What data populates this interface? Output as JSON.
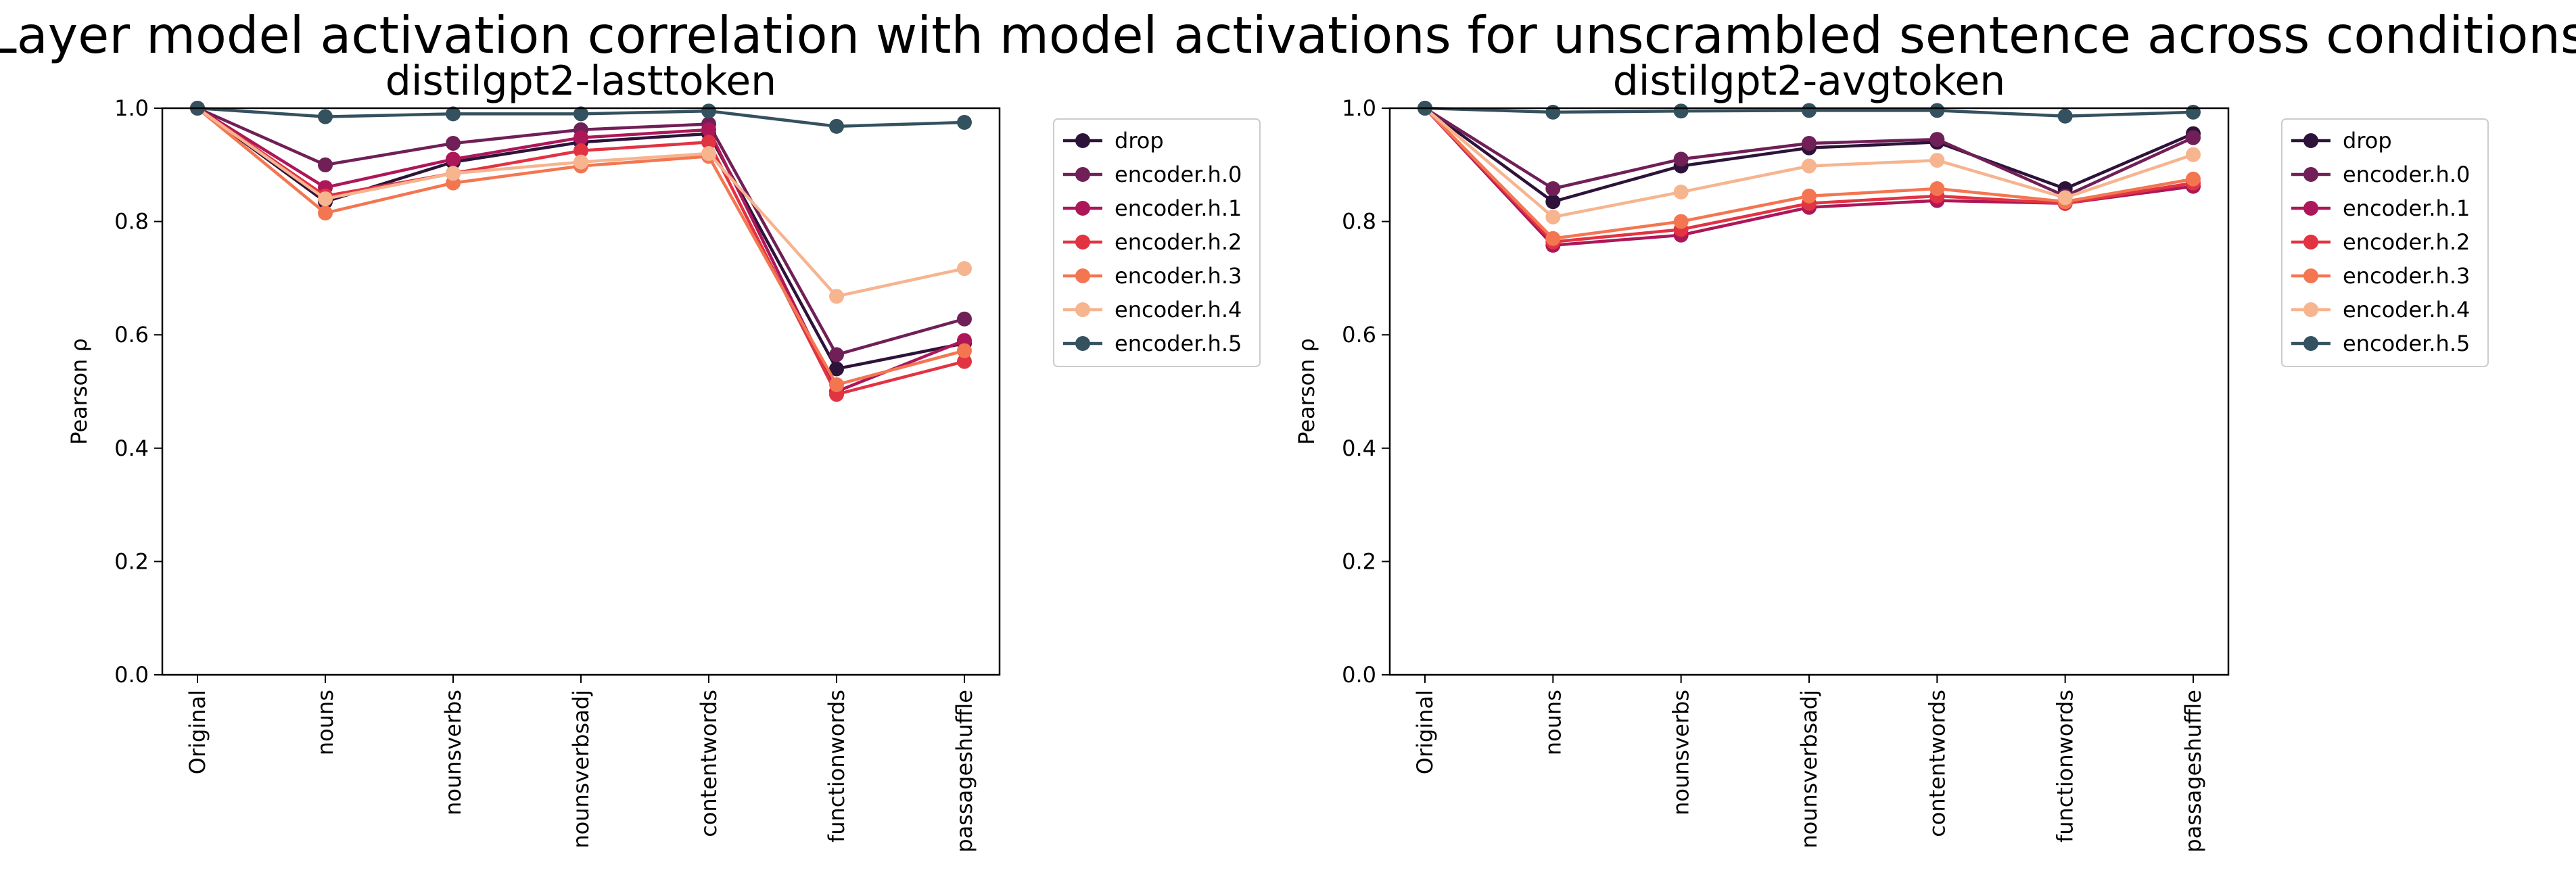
{
  "figure": {
    "title": "Layer model activation correlation with model activations for unscrambled sentence across conditions"
  },
  "chart_data": [
    {
      "type": "line",
      "title": "distilgpt2-lasttoken",
      "xlabel": "",
      "ylabel": "Pearson ρ",
      "ylim": [
        0,
        1.0
      ],
      "yticks": [
        "0.0",
        "0.2",
        "0.4",
        "0.6",
        "0.8",
        "1.0"
      ],
      "categories": [
        "Original",
        "nouns",
        "nounsverbs",
        "nounsverbsadj",
        "contentwords",
        "functionwords",
        "passageshuffle"
      ],
      "grid": false,
      "legend_position": "outside-right-top",
      "series": [
        {
          "name": "drop",
          "color": "#2d1339",
          "values": [
            1.0,
            0.835,
            0.905,
            0.94,
            0.955,
            0.54,
            0.585
          ]
        },
        {
          "name": "encoder.h.0",
          "color": "#701f57",
          "values": [
            1.0,
            0.9,
            0.938,
            0.962,
            0.972,
            0.565,
            0.628
          ]
        },
        {
          "name": "encoder.h.1",
          "color": "#ad1759",
          "values": [
            1.0,
            0.86,
            0.91,
            0.948,
            0.962,
            0.5,
            0.59
          ]
        },
        {
          "name": "encoder.h.2",
          "color": "#e13342",
          "values": [
            1.0,
            0.845,
            0.885,
            0.925,
            0.94,
            0.495,
            0.553
          ]
        },
        {
          "name": "encoder.h.3",
          "color": "#f37651",
          "values": [
            1.0,
            0.815,
            0.868,
            0.898,
            0.915,
            0.512,
            0.572
          ]
        },
        {
          "name": "encoder.h.4",
          "color": "#f6b48f",
          "values": [
            1.0,
            0.84,
            0.885,
            0.905,
            0.92,
            0.668,
            0.717
          ]
        },
        {
          "name": "encoder.h.5",
          "color": "#34515f",
          "values": [
            1.0,
            0.985,
            0.99,
            0.99,
            0.995,
            0.968,
            0.975
          ]
        }
      ]
    },
    {
      "type": "line",
      "title": "distilgpt2-avgtoken",
      "xlabel": "",
      "ylabel": "Pearson ρ",
      "ylim": [
        0,
        1.0
      ],
      "yticks": [
        "0.0",
        "0.2",
        "0.4",
        "0.6",
        "0.8",
        "1.0"
      ],
      "categories": [
        "Original",
        "nouns",
        "nounsverbs",
        "nounsverbsadj",
        "contentwords",
        "functionwords",
        "passageshuffle"
      ],
      "grid": false,
      "legend_position": "outside-right-top",
      "series": [
        {
          "name": "drop",
          "color": "#2d1339",
          "values": [
            1.0,
            0.835,
            0.898,
            0.93,
            0.94,
            0.858,
            0.955
          ]
        },
        {
          "name": "encoder.h.0",
          "color": "#701f57",
          "values": [
            1.0,
            0.858,
            0.91,
            0.938,
            0.945,
            0.845,
            0.948
          ]
        },
        {
          "name": "encoder.h.1",
          "color": "#ad1759",
          "values": [
            1.0,
            0.758,
            0.776,
            0.825,
            0.837,
            0.832,
            0.862
          ]
        },
        {
          "name": "encoder.h.2",
          "color": "#e13342",
          "values": [
            1.0,
            0.764,
            0.786,
            0.832,
            0.845,
            0.832,
            0.868
          ]
        },
        {
          "name": "encoder.h.3",
          "color": "#f37651",
          "values": [
            1.0,
            0.77,
            0.8,
            0.845,
            0.858,
            0.835,
            0.875
          ]
        },
        {
          "name": "encoder.h.4",
          "color": "#f6b48f",
          "values": [
            1.0,
            0.808,
            0.852,
            0.898,
            0.908,
            0.842,
            0.918
          ]
        },
        {
          "name": "encoder.h.5",
          "color": "#34515f",
          "values": [
            1.0,
            0.993,
            0.995,
            0.996,
            0.996,
            0.986,
            0.993
          ]
        }
      ]
    }
  ]
}
